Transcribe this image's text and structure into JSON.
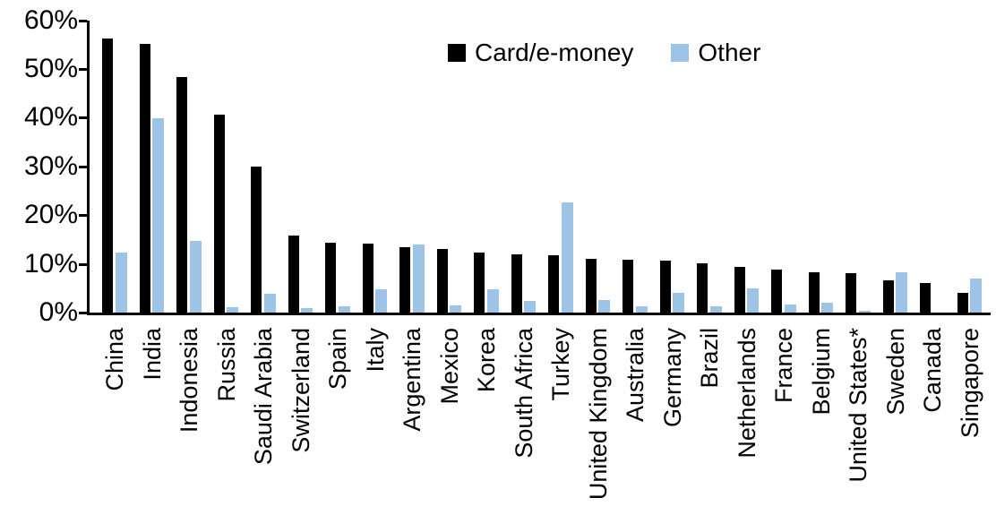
{
  "chart_data": {
    "type": "bar",
    "title": "",
    "xlabel": "",
    "ylabel": "",
    "ylim": [
      0,
      60
    ],
    "ytick_labels": [
      "0%",
      "10%",
      "20%",
      "30%",
      "40%",
      "50%",
      "60%"
    ],
    "ytick_values": [
      0,
      10,
      20,
      30,
      40,
      50,
      60
    ],
    "grid": false,
    "legend_position": "top-center",
    "categories": [
      "China",
      "India",
      "Indonesia",
      "Russia",
      "Saudi Arabia",
      "Switzerland",
      "Spain",
      "Italy",
      "Argentina",
      "Mexico",
      "Korea",
      "South Africa",
      "Turkey",
      "United Kingdom",
      "Australia",
      "Germany",
      "Brazil",
      "Netherlands",
      "France",
      "Belgium",
      "United States*",
      "Sweden",
      "Canada",
      "Singapore"
    ],
    "series": [
      {
        "name": "Card/e-money",
        "color": "#000000",
        "values": [
          56.3,
          55.1,
          48.4,
          40.6,
          29.9,
          15.8,
          14.3,
          14.1,
          13.5,
          13.1,
          12.4,
          11.9,
          11.7,
          11.1,
          10.9,
          10.7,
          10.2,
          9.4,
          8.8,
          8.2,
          8.0,
          6.6,
          6.0,
          4.0
        ]
      },
      {
        "name": "Other",
        "color": "#9DC3E6",
        "values": [
          12.4,
          39.8,
          14.7,
          1.1,
          3.9,
          0.9,
          1.2,
          4.7,
          14.0,
          1.5,
          4.7,
          2.4,
          22.6,
          2.5,
          1.2,
          4.0,
          1.3,
          5.0,
          1.6,
          2.1,
          0.3,
          8.2,
          0,
          6.9
        ]
      }
    ]
  },
  "axis_color": "#000000"
}
